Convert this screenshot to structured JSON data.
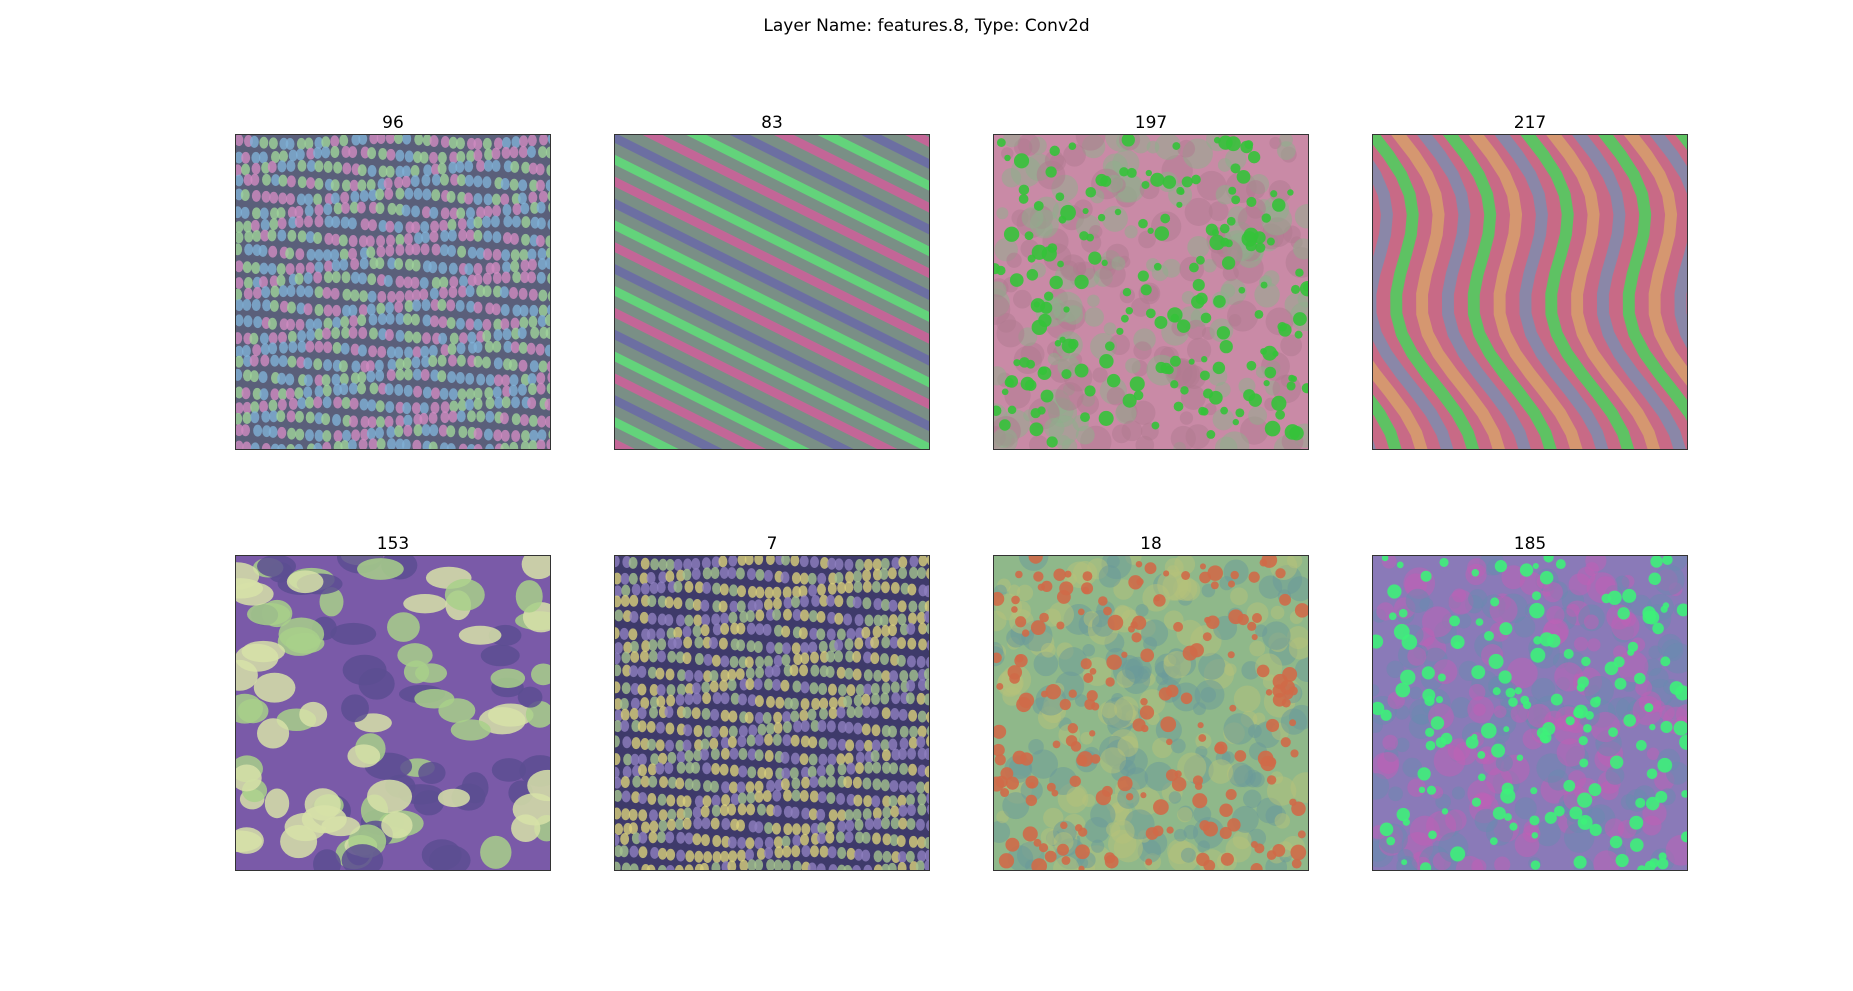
{
  "figure": {
    "title": "Layer Name: features.8, Type: Conv2d"
  },
  "panels": [
    {
      "label": "96",
      "pattern": "wavy-ridges",
      "colors": [
        "#5a5f7a",
        "#9fd39a",
        "#d08bc0",
        "#7fb0d6"
      ]
    },
    {
      "label": "83",
      "pattern": "diagonal-stripes",
      "colors": [
        "#7a8f86",
        "#5fe07a",
        "#d0609a",
        "#6a6aa8"
      ]
    },
    {
      "label": "197",
      "pattern": "dots",
      "colors": [
        "#c98aa6",
        "#35c23a",
        "#b07a90",
        "#8db08c"
      ]
    },
    {
      "label": "217",
      "pattern": "vertical-waves",
      "colors": [
        "#c86a86",
        "#44d85a",
        "#d8a26a",
        "#7a8fb0"
      ]
    },
    {
      "label": "153",
      "pattern": "blobs",
      "colors": [
        "#7a5aa8",
        "#d7e2a8",
        "#a8d08a",
        "#5c4d92"
      ]
    },
    {
      "label": "7",
      "pattern": "horizontal-beads",
      "colors": [
        "#3e3a6a",
        "#d8cf7a",
        "#a4c38e",
        "#8f7fbf"
      ]
    },
    {
      "label": "18",
      "pattern": "orange-dots",
      "colors": [
        "#8fb88a",
        "#cf6a48",
        "#b6c27a",
        "#6a9a9a"
      ]
    },
    {
      "label": "185",
      "pattern": "speckled",
      "colors": [
        "#8a7ab8",
        "#3ef07a",
        "#c060b6",
        "#6a8ab0"
      ]
    }
  ]
}
